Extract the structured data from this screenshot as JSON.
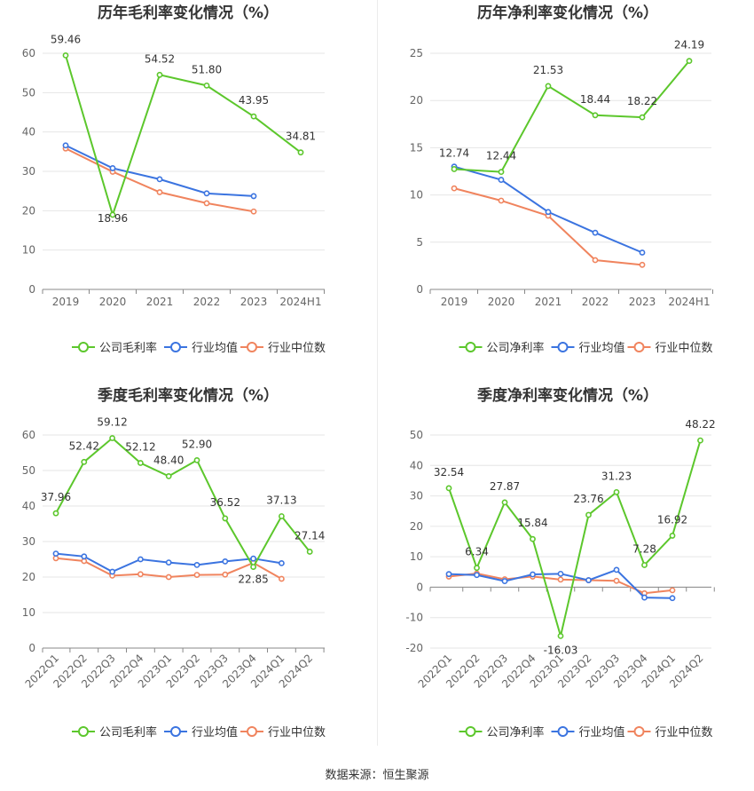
{
  "source_text": "数据来源：恒生聚源",
  "colors": {
    "company": "#5cc72c",
    "industry_avg": "#3b74e0",
    "industry_median": "#f0845e",
    "grid": "#e6e6e6",
    "axis": "#999999"
  },
  "chart_data": [
    {
      "type": "line",
      "title": "历年毛利率变化情况（%）",
      "categories": [
        "2019",
        "2020",
        "2021",
        "2022",
        "2023",
        "2024H1"
      ],
      "ylim": [
        0,
        60
      ],
      "yticks": [
        0,
        10,
        20,
        30,
        40,
        50,
        60
      ],
      "rotate_labels": false,
      "legend": [
        "公司毛利率",
        "行业均值",
        "行业中位数"
      ],
      "series": [
        {
          "name": "公司毛利率",
          "values": [
            59.46,
            18.96,
            54.52,
            51.8,
            43.95,
            34.81
          ],
          "labels": [
            "59.46",
            "18.96",
            "54.52",
            "51.80",
            "43.95",
            "34.81"
          ]
        },
        {
          "name": "行业均值",
          "values": [
            36.6,
            30.8,
            28.0,
            24.4,
            23.7,
            null
          ]
        },
        {
          "name": "行业中位数",
          "values": [
            35.8,
            29.9,
            24.7,
            21.9,
            19.8,
            null
          ]
        }
      ]
    },
    {
      "type": "line",
      "title": "历年净利率变化情况（%）",
      "categories": [
        "2019",
        "2020",
        "2021",
        "2022",
        "2023",
        "2024H1"
      ],
      "ylim": [
        0,
        25
      ],
      "yticks": [
        0,
        5,
        10,
        15,
        20,
        25
      ],
      "rotate_labels": false,
      "legend": [
        "公司净利率",
        "行业均值",
        "行业中位数"
      ],
      "series": [
        {
          "name": "公司净利率",
          "values": [
            12.74,
            12.44,
            21.53,
            18.44,
            18.22,
            24.19
          ],
          "labels": [
            "12.74",
            "12.44",
            "21.53",
            "18.44",
            "18.22",
            "24.19"
          ]
        },
        {
          "name": "行业均值",
          "values": [
            13.0,
            11.6,
            8.2,
            6.0,
            3.9,
            null
          ]
        },
        {
          "name": "行业中位数",
          "values": [
            10.7,
            9.4,
            7.8,
            3.1,
            2.6,
            null
          ]
        }
      ]
    },
    {
      "type": "line",
      "title": "季度毛利率变化情况（%）",
      "categories": [
        "2022Q1",
        "2022Q2",
        "2022Q3",
        "2022Q4",
        "2023Q1",
        "2023Q2",
        "2023Q3",
        "2023Q4",
        "2024Q1",
        "2024Q2"
      ],
      "ylim": [
        0,
        60
      ],
      "yticks": [
        0,
        10,
        20,
        30,
        40,
        50,
        60
      ],
      "rotate_labels": true,
      "legend": [
        "公司毛利率",
        "行业均值",
        "行业中位数"
      ],
      "series": [
        {
          "name": "公司毛利率",
          "values": [
            37.96,
            52.42,
            59.12,
            52.12,
            48.4,
            52.9,
            36.52,
            22.85,
            37.13,
            27.14
          ],
          "labels": [
            "37.96",
            "52.42",
            "59.12",
            "52.12",
            "48.40",
            "52.90",
            "36.52",
            "22.85",
            "37.13",
            "27.14"
          ]
        },
        {
          "name": "行业均值",
          "values": [
            26.6,
            25.8,
            21.5,
            25.0,
            24.1,
            23.4,
            24.4,
            25.2,
            23.9,
            null
          ]
        },
        {
          "name": "行业中位数",
          "values": [
            25.3,
            24.5,
            20.4,
            20.8,
            20.0,
            20.6,
            20.7,
            24.0,
            19.5,
            null
          ]
        }
      ]
    },
    {
      "type": "line",
      "title": "季度净利率变化情况（%）",
      "categories": [
        "2022Q1",
        "2022Q2",
        "2022Q3",
        "2022Q4",
        "2023Q1",
        "2023Q2",
        "2023Q3",
        "2023Q4",
        "2024Q1",
        "2024Q2"
      ],
      "ylim": [
        -20,
        50
      ],
      "yticks": [
        -20,
        -10,
        0,
        10,
        20,
        30,
        40,
        50
      ],
      "rotate_labels": true,
      "legend": [
        "公司净利率",
        "行业均值",
        "行业中位数"
      ],
      "series": [
        {
          "name": "公司净利率",
          "values": [
            32.54,
            6.34,
            27.87,
            15.84,
            -16.03,
            23.76,
            31.23,
            7.28,
            16.92,
            48.22
          ],
          "labels": [
            "32.54",
            "6.34",
            "27.87",
            "15.84",
            "-16.03",
            "23.76",
            "31.23",
            "7.28",
            "16.92",
            "48.22"
          ]
        },
        {
          "name": "行业均值",
          "values": [
            4.3,
            4.0,
            2.0,
            4.2,
            4.4,
            2.3,
            5.7,
            -3.4,
            -3.6,
            null
          ]
        },
        {
          "name": "行业中位数",
          "values": [
            3.5,
            4.5,
            2.6,
            3.5,
            2.5,
            2.3,
            2.1,
            -2.0,
            -1.0,
            null
          ]
        }
      ]
    }
  ]
}
